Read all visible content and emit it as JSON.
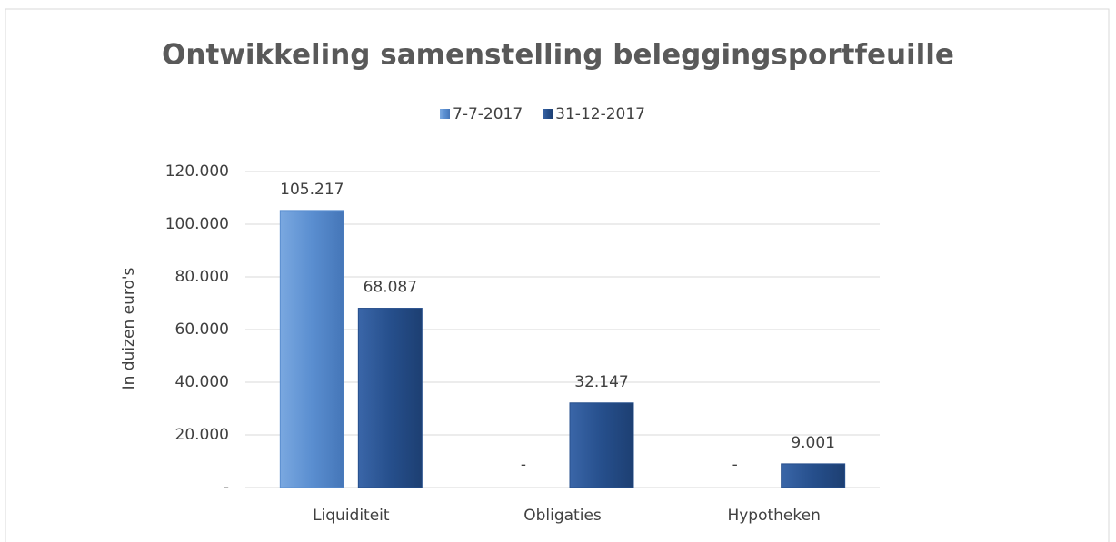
{
  "chart_data": {
    "type": "bar",
    "title": "Ontwikkeling samenstelling beleggingsportfeuille",
    "ylabel": "In duizen euro's",
    "categories": [
      "Liquiditeit",
      "Obligaties",
      "Hypotheken"
    ],
    "series": [
      {
        "name": "7-7-2017",
        "color": "#5a8ed0",
        "values": [
          105217,
          0,
          0
        ],
        "value_labels": [
          "105.217",
          "-",
          "-"
        ]
      },
      {
        "name": "31-12-2017",
        "color": "#264f8c",
        "values": [
          68087,
          32147,
          9001
        ],
        "value_labels": [
          "68.087",
          "32.147",
          "9.001"
        ]
      }
    ],
    "ylim": [
      0,
      120000
    ],
    "yticks": [
      {
        "value": 0,
        "label": "-"
      },
      {
        "value": 20000,
        "label": "20.000"
      },
      {
        "value": 40000,
        "label": "40.000"
      },
      {
        "value": 60000,
        "label": "60.000"
      },
      {
        "value": 80000,
        "label": "80.000"
      },
      {
        "value": 100000,
        "label": "100.000"
      },
      {
        "value": 120000,
        "label": "120.000"
      }
    ],
    "grid": true,
    "legend": "top"
  }
}
